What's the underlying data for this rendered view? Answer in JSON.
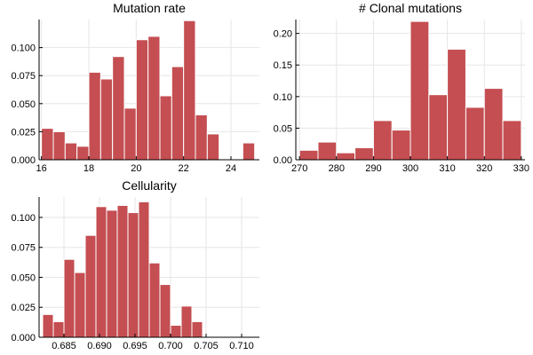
{
  "chart_data": [
    {
      "type": "bar",
      "title": "Mutation rate",
      "xlabel": "",
      "ylabel": "",
      "bar_color": "#c44e52",
      "grid": true,
      "xlim": [
        15.9,
        25.2
      ],
      "ylim": [
        0,
        0.125
      ],
      "xticks": [
        16,
        18,
        20,
        22,
        24
      ],
      "yticks": [
        0,
        0.025,
        0.05,
        0.075,
        0.1
      ],
      "ytick_labels": [
        "0.000",
        "0.025",
        "0.050",
        "0.075",
        "0.100"
      ],
      "bin_width": 0.5,
      "bin_starts": [
        16,
        16.5,
        17,
        17.5,
        18,
        18.5,
        19,
        19.5,
        20,
        20.5,
        21,
        21.5,
        22,
        22.5,
        23,
        23.5,
        24,
        24.5
      ],
      "values": [
        0.028,
        0.025,
        0.015,
        0.012,
        0.078,
        0.072,
        0.092,
        0.046,
        0.107,
        0.11,
        0.057,
        0.083,
        0.124,
        0.04,
        0.023,
        0,
        0,
        0.015
      ]
    },
    {
      "type": "bar",
      "title": "# Clonal mutations",
      "xlabel": "",
      "ylabel": "",
      "bar_color": "#c44e52",
      "grid": true,
      "xlim": [
        269,
        331
      ],
      "ylim": [
        0,
        0.222
      ],
      "xticks": [
        270,
        280,
        290,
        300,
        310,
        320,
        330
      ],
      "yticks": [
        0,
        0.05,
        0.1,
        0.15,
        0.2
      ],
      "ytick_labels": [
        "0.00",
        "0.05",
        "0.10",
        "0.15",
        "0.20"
      ],
      "bin_width": 5,
      "bin_starts": [
        270,
        275,
        280,
        285,
        290,
        295,
        300,
        305,
        310,
        315,
        320,
        325
      ],
      "values": [
        0.015,
        0.028,
        0.011,
        0.019,
        0.062,
        0.047,
        0.219,
        0.103,
        0.175,
        0.083,
        0.113,
        0.062
      ]
    },
    {
      "type": "bar",
      "title": "Cellularity",
      "xlabel": "",
      "ylabel": "",
      "bar_color": "#c44e52",
      "grid": true,
      "xlim": [
        0.6815,
        0.7125
      ],
      "ylim": [
        0,
        0.117
      ],
      "xticks": [
        0.685,
        0.69,
        0.695,
        0.7,
        0.705,
        0.71
      ],
      "xtick_labels": [
        "0.685",
        "0.690",
        "0.695",
        "0.700",
        "0.705",
        "0.710"
      ],
      "yticks": [
        0,
        0.025,
        0.05,
        0.075,
        0.1
      ],
      "ytick_labels": [
        "0.000",
        "0.025",
        "0.050",
        "0.075",
        "0.100"
      ],
      "bin_width": 0.0015,
      "bin_starts": [
        0.682,
        0.6835,
        0.685,
        0.6865,
        0.688,
        0.6895,
        0.691,
        0.6925,
        0.694,
        0.6955,
        0.697,
        0.6985,
        0.7,
        0.7015,
        0.703,
        0.7045,
        0.706,
        0.7075,
        0.709
      ],
      "values": [
        0.019,
        0.013,
        0.065,
        0.054,
        0.085,
        0.109,
        0.106,
        0.11,
        0.104,
        0.113,
        0.062,
        0.044,
        0.01,
        0.026,
        0.013,
        0,
        0,
        0,
        0
      ]
    }
  ]
}
